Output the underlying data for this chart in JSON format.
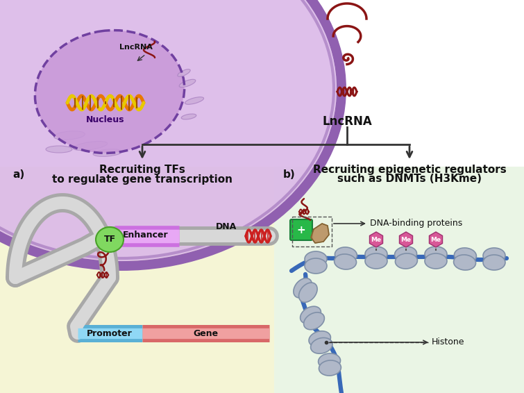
{
  "bg_color": "#ffffff",
  "bottom_left_bg": "#f5f5d5",
  "bottom_right_bg": "#eaf5e5",
  "cell_fill": "#dbb8e8",
  "cell_stroke": "#9060b0",
  "nucleus_fill": "#c898d8",
  "nucleus_stroke": "#7040a0",
  "er_fill": "#caaad8",
  "lncrna_label_top": "LncRNA",
  "lncrna_label_center": "LncRNA",
  "nucleus_label": "Nucleus",
  "section_a_title1": "Recruiting TFs",
  "section_a_title2": "to regulate gene transcription",
  "section_b_title1": "Recruiting epigenetic regulators",
  "section_b_title2": "such as DNMTs (H3Kme)",
  "label_a": "a)",
  "label_b": "b)",
  "enhancer_label": "Enhancer",
  "tf_label": "TF",
  "dna_label": "DNA",
  "promoter_label": "Promoter",
  "gene_label": "Gene",
  "dna_binding_label": "DNA-binding proteins",
  "histone_label": "Histone",
  "me_label": "Me",
  "enhancer_color": "#d890e8",
  "tf_color": "#80d860",
  "promoter_color": "#80c8f0",
  "gene_color": "#f09090",
  "tube_outer": "#a8a8a8",
  "tube_inner": "#d8d8d8",
  "green_protein_color": "#28b848",
  "brown_protein_color": "#b89060",
  "histone_fill": "#b0b8c8",
  "histone_stroke": "#8090a8",
  "dna_strand_color": "#3868b8",
  "me_color": "#d85898",
  "rna_color": "#8b1515",
  "dna_helix_color1": "#e87800",
  "dna_helix_color2": "#e8c800",
  "arrow_color": "#333333"
}
